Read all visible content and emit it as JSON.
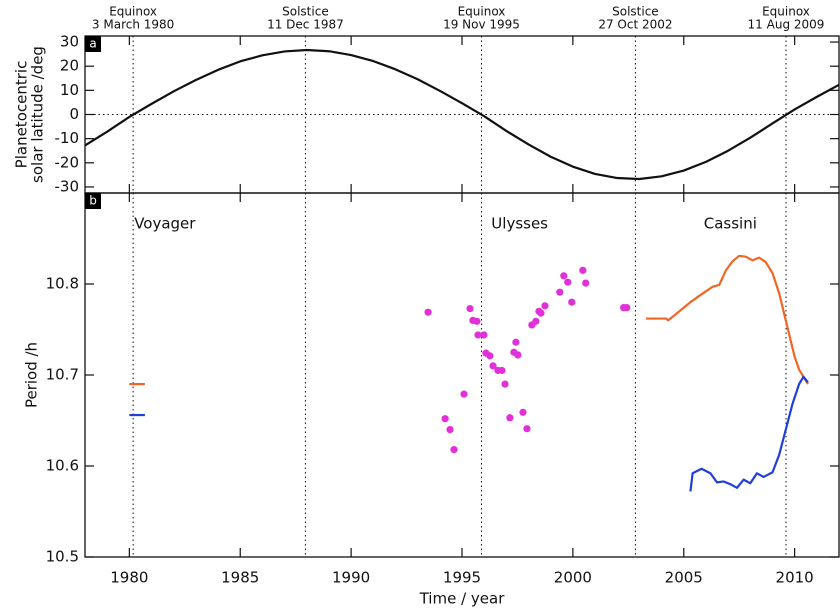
{
  "chart_data": [
    {
      "type": "line",
      "panel_label": "a",
      "ylabel": [
        "Planetocentric",
        "solar latitude /deg"
      ],
      "xlim": [
        1978,
        2012
      ],
      "ylim": [
        -32.5,
        32.5
      ],
      "yticks": [
        -30,
        -20,
        -10,
        0,
        10,
        20,
        30
      ],
      "reference_line": 0,
      "events": [
        {
          "x": 1980.17,
          "label": "Equinox",
          "date": "3 March 1980"
        },
        {
          "x": 1987.94,
          "label": "Solstice",
          "date": "11 Dec 1987"
        },
        {
          "x": 1995.88,
          "label": "Equinox",
          "date": "19 Nov 1995"
        },
        {
          "x": 2002.82,
          "label": "Solstice",
          "date": "27 Oct 2002"
        },
        {
          "x": 2009.61,
          "label": "Equinox",
          "date": "11 Aug 2009"
        }
      ],
      "series": [
        {
          "color": "#111111",
          "x": [
            1978,
            1979,
            1980,
            1981,
            1982,
            1983,
            1984,
            1985,
            1986,
            1987,
            1988,
            1989,
            1990,
            1991,
            1992,
            1993,
            1994,
            1995,
            1996,
            1997,
            1998,
            1999,
            2000,
            2001,
            2002,
            2003,
            2004,
            2005,
            2006,
            2007,
            2008,
            2009,
            2010,
            2011,
            2012
          ],
          "values": [
            -12.8,
            -7.1,
            -1.0,
            4.4,
            9.6,
            14.3,
            18.5,
            22.0,
            24.5,
            26.1,
            26.7,
            26.2,
            24.6,
            22.1,
            18.7,
            14.6,
            9.8,
            4.7,
            -0.7,
            -6.8,
            -12.4,
            -17.5,
            -21.6,
            -24.6,
            -26.3,
            -26.7,
            -25.6,
            -23.2,
            -19.6,
            -15.0,
            -9.6,
            -3.7,
            2.1,
            7.3,
            12.3
          ]
        }
      ]
    },
    {
      "type": "line",
      "panel_label": "b",
      "xlabel": "Time / year",
      "ylabel": [
        "Period /h"
      ],
      "xlim": [
        1978,
        2012
      ],
      "ylim": [
        10.5,
        10.9
      ],
      "xticks": [
        1980,
        1985,
        1990,
        1995,
        2000,
        2005,
        2010
      ],
      "yticks": [
        {
          "value": 10.5,
          "label": "10.5"
        },
        10.6,
        10.7,
        10.8
      ],
      "annotations": [
        {
          "text": "Voyager",
          "x": 1981.6,
          "y": 10.866
        },
        {
          "text": "Ulysses",
          "x": 1997.6,
          "y": 10.866
        },
        {
          "text": "Cassini",
          "x": 2007.1,
          "y": 10.866
        }
      ],
      "series": [
        {
          "color": "#f26522",
          "x": [
            1980.0,
            1980.7
          ],
          "values": [
            10.69,
            10.69
          ]
        },
        {
          "color": "#1f3fd8",
          "x": [
            1980.0,
            1980.7
          ],
          "values": [
            10.656,
            10.656
          ]
        },
        {
          "color": "#e030d8",
          "marker": true,
          "x": [
            1993.47,
            1994.24,
            1994.46,
            1994.64,
            1995.09,
            1995.36,
            1995.49,
            1995.67,
            1995.72,
            1995.99,
            1996.08,
            1996.26,
            1996.4,
            1996.62,
            1996.8,
            1996.94,
            1997.16,
            1997.34,
            1997.43,
            1997.52,
            1997.75,
            1997.93,
            1998.15,
            1998.33,
            1998.47,
            1998.56,
            1998.74,
            1999.41,
            1999.59,
            1999.77,
            1999.95,
            2000.45,
            2000.58,
            2002.29,
            2002.43
          ],
          "values": [
            10.769,
            10.652,
            10.64,
            10.618,
            10.679,
            10.773,
            10.76,
            10.759,
            10.744,
            10.744,
            10.724,
            10.721,
            10.71,
            10.705,
            10.705,
            10.69,
            10.653,
            10.725,
            10.736,
            10.722,
            10.659,
            10.641,
            10.755,
            10.759,
            10.77,
            10.768,
            10.776,
            10.791,
            10.809,
            10.802,
            10.78,
            10.815,
            10.801,
            10.774,
            10.774
          ]
        },
        {
          "color": "#f26522",
          "x": [
            2003.3,
            2004.2,
            2004.3,
            2004.6,
            2005.0,
            2005.3,
            2005.7,
            2006.0,
            2006.3,
            2006.6,
            2006.9,
            2007.2,
            2007.5,
            2007.8,
            2008.1,
            2008.4,
            2008.7,
            2009.0,
            2009.3,
            2009.6,
            2009.8,
            2010.0,
            2010.2,
            2010.4,
            2010.6
          ],
          "values": [
            10.762,
            10.762,
            10.76,
            10.766,
            10.774,
            10.78,
            10.787,
            10.792,
            10.797,
            10.799,
            10.815,
            10.825,
            10.831,
            10.83,
            10.826,
            10.829,
            10.824,
            10.812,
            10.79,
            10.76,
            10.74,
            10.72,
            10.706,
            10.698,
            10.69
          ]
        },
        {
          "color": "#1f3fd8",
          "x": [
            2005.3,
            2005.4,
            2005.8,
            2006.2,
            2006.5,
            2006.8,
            2007.1,
            2007.4,
            2007.7,
            2008.0,
            2008.3,
            2008.6,
            2009.0,
            2009.3,
            2009.6,
            2009.9,
            2010.2,
            2010.4,
            2010.6
          ],
          "values": [
            10.572,
            10.592,
            10.597,
            10.592,
            10.582,
            10.583,
            10.58,
            10.576,
            10.585,
            10.581,
            10.592,
            10.588,
            10.593,
            10.612,
            10.64,
            10.668,
            10.69,
            10.698,
            10.692
          ]
        }
      ]
    }
  ]
}
